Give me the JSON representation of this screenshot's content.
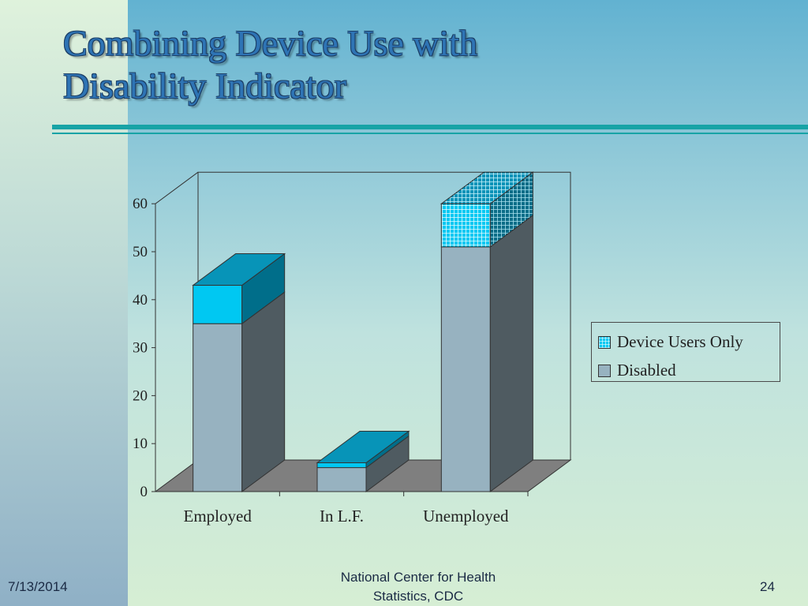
{
  "slide": {
    "title_line1": "Combining Device Use with",
    "title_line2": "Disability Indicator",
    "footer_date": "7/13/2014",
    "footer_center_line1": "National Center for Health",
    "footer_center_line2": "Statistics, CDC",
    "page_number": "24"
  },
  "chart_data": {
    "type": "bar",
    "stacked": true,
    "three_d": true,
    "categories": [
      "Employed",
      "In L.F.",
      "Unemployed"
    ],
    "series": [
      {
        "name": "Disabled",
        "values": [
          35,
          5,
          51
        ],
        "color": "#97b2c0"
      },
      {
        "name": "Device Users Only",
        "values": [
          8,
          1,
          9
        ],
        "color": "#00c8f2",
        "pattern": "grid"
      }
    ],
    "yticks": [
      "0",
      "10",
      "20",
      "30",
      "40",
      "50",
      "60"
    ],
    "ylim": [
      0,
      60
    ],
    "legend_position": "right"
  }
}
